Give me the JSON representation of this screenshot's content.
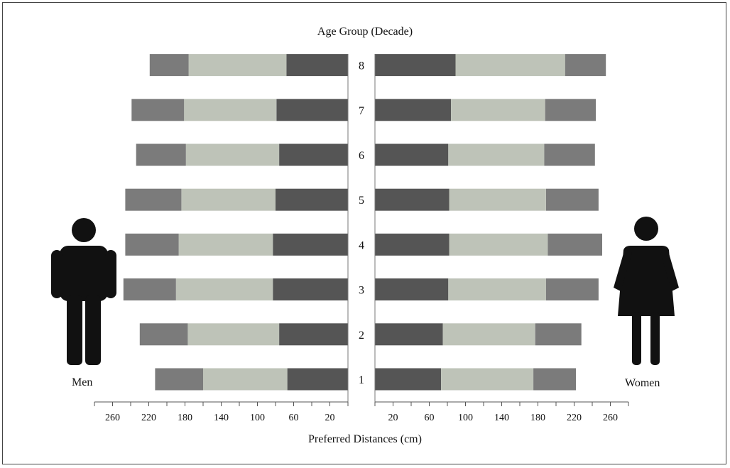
{
  "chart_data": {
    "type": "bar",
    "orientation": "horizontal",
    "layout": "back-to-back population pyramid",
    "title": "Age Group (Decade)",
    "xlabel": "Preferred Distances (cm)",
    "categories": [
      "1",
      "2",
      "3",
      "4",
      "5",
      "6",
      "7",
      "8"
    ],
    "xlim": [
      0,
      280
    ],
    "xticks": [
      20,
      60,
      100,
      140,
      180,
      220,
      260
    ],
    "panels": [
      {
        "name": "Men",
        "direction": "left",
        "segments": [
          {
            "color": "#555555",
            "values": [
              67,
              76,
              83,
              83,
              80,
              76,
              79,
              68
            ]
          },
          {
            "color": "#bec3b8",
            "values": [
              93,
              101,
              107,
              104,
              104,
              103,
              102,
              108
            ]
          },
          {
            "color": "#7b7b7b",
            "values": [
              53,
              53,
              58,
              59,
              62,
              55,
              58,
              43
            ]
          }
        ]
      },
      {
        "name": "Women",
        "direction": "right",
        "segments": [
          {
            "color": "#555555",
            "values": [
              73,
              75,
              81,
              82,
              82,
              81,
              84,
              89
            ]
          },
          {
            "color": "#bec3b8",
            "values": [
              102,
              102,
              108,
              109,
              107,
              106,
              104,
              121
            ]
          },
          {
            "color": "#7b7b7b",
            "values": [
              47,
              51,
              58,
              60,
              58,
              56,
              56,
              45
            ]
          }
        ]
      }
    ],
    "grid": false,
    "legend": "none"
  },
  "labels": {
    "men": "Men",
    "women": "Women"
  }
}
